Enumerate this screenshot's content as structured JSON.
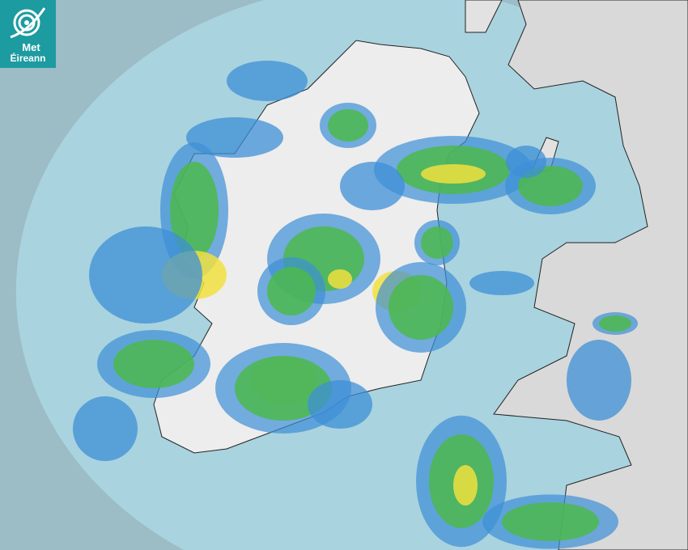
{
  "logo": {
    "line1": "Met",
    "line2": "Éireann",
    "color": "#1c9ba1"
  },
  "map": {
    "type": "rain radar",
    "colors": {
      "outside_range": "#9cbcc6",
      "radar_range": "#a9d3df",
      "land": "#eeeeee",
      "rain_light": "#3d8fd6",
      "rain_moderate": "#4cb84c",
      "rain_heavy": "#f0e040"
    }
  }
}
